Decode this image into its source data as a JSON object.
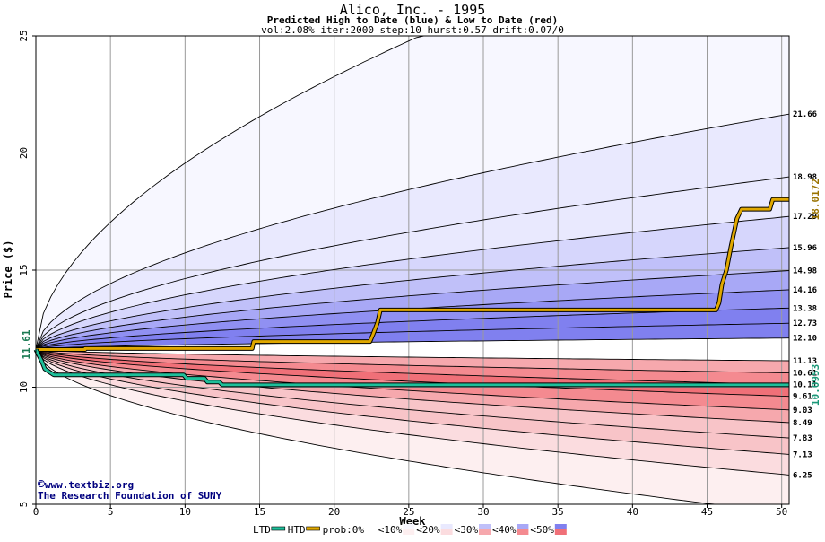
{
  "chart_data": {
    "type": "area",
    "title": "Alico, Inc. - 1995",
    "subtitle": "Predicted High to Date (blue) &  Low to Date (red)",
    "params": "vol:2.08% iter:2000 step:10 hurst:0.57 drift:0.07/0",
    "xlabel": "Week",
    "ylabel": "Price ($)",
    "xlim": [
      0,
      50.5
    ],
    "ylim": [
      5,
      25
    ],
    "xticks": [
      0,
      5,
      10,
      15,
      20,
      25,
      30,
      35,
      40,
      45,
      50
    ],
    "yticks": [
      5,
      10,
      15,
      20,
      25
    ],
    "grid": true,
    "start_price": 11.61,
    "start_label": "11.61",
    "band_colors": [
      "#ffffff",
      "#fdeff0",
      "#fbdcdf",
      "#f8c4c8",
      "#f6a8ad",
      "#f48a90",
      "#f07078",
      "#f7f7ff",
      "#e9e9fe",
      "#d6d6fc",
      "#c0c0f9",
      "#a8a8f6",
      "#9090f2",
      "#8080ef"
    ],
    "quantile_curves": [
      {
        "label": "21.66",
        "final": 21.66
      },
      {
        "label": "18.98",
        "final": 18.98
      },
      {
        "label": "17.29",
        "final": 17.29
      },
      {
        "label": "15.96",
        "final": 15.96
      },
      {
        "label": "14.98",
        "final": 14.98
      },
      {
        "label": "14.16",
        "final": 14.16
      },
      {
        "label": "13.38",
        "final": 13.38
      },
      {
        "label": "12.73",
        "final": 12.73
      },
      {
        "label": "12.10",
        "final": 12.1
      },
      {
        "label": "11.13",
        "final": 11.13
      },
      {
        "label": "10.61",
        "final": 10.61
      },
      {
        "label": "10.11",
        "final": 10.11
      },
      {
        "label": "9.61",
        "final": 9.61
      },
      {
        "label": "9.03",
        "final": 9.03
      },
      {
        "label": "8.49",
        "final": 8.49
      },
      {
        "label": "7.83",
        "final": 7.83
      },
      {
        "label": "7.13",
        "final": 7.13
      },
      {
        "label": "6.25",
        "final": 6.25
      }
    ],
    "outer_curves": {
      "upper_final": 31.0,
      "lower_final": 4.6
    },
    "series": [
      {
        "name": "HTD",
        "color": "#e0a800",
        "x": [
          0,
          0.3,
          3.3,
          3.3,
          14.5,
          14.6,
          22.4,
          22.6,
          22.9,
          23.1,
          33.0,
          45.6,
          45.8,
          46.0,
          46.3,
          46.6,
          47.0,
          47.3,
          49.2,
          49.4,
          50.5
        ],
        "y": [
          11.61,
          11.61,
          11.61,
          11.65,
          11.65,
          11.95,
          11.95,
          12.25,
          12.75,
          13.3,
          13.3,
          13.3,
          13.6,
          14.4,
          15.0,
          16.0,
          17.2,
          17.6,
          17.6,
          18.02,
          18.02
        ]
      },
      {
        "name": "LTD",
        "color": "#1ebf9a",
        "x": [
          0,
          0.4,
          0.6,
          1.2,
          9.9,
          10.1,
          11.3,
          11.5,
          12.3,
          12.5,
          50.5
        ],
        "y": [
          11.61,
          11.1,
          10.78,
          10.53,
          10.53,
          10.38,
          10.38,
          10.22,
          10.22,
          10.1,
          10.1
        ]
      }
    ],
    "end_labels": [
      {
        "text": "18.0172",
        "color": "#9a7300"
      },
      {
        "text": "10.0953",
        "color": "#1a9878"
      }
    ],
    "legend": [
      {
        "label": "LTD",
        "kind": "line",
        "color": "#1ebf9a"
      },
      {
        "label": "HTD",
        "kind": "line",
        "color": "#e0a800"
      },
      {
        "label": "prob:0%",
        "kind": "swatch",
        "top": "#ffffff",
        "bottom": "#ffffff"
      },
      {
        "label": "<10%",
        "kind": "swatch",
        "top": "#f7f7ff",
        "bottom": "#fdeff0"
      },
      {
        "label": "<20%",
        "kind": "swatch",
        "top": "#e9e9fe",
        "bottom": "#fbdcdf"
      },
      {
        "label": "<30%",
        "kind": "swatch",
        "top": "#c0c0f9",
        "bottom": "#f6a8ad"
      },
      {
        "label": "<40%",
        "kind": "swatch",
        "top": "#a8a8f6",
        "bottom": "#f48a90"
      },
      {
        "label": "<50%",
        "kind": "swatch",
        "top": "#8080ef",
        "bottom": "#f07078"
      }
    ],
    "legend_placement": "bottom"
  },
  "credits": {
    "site": "www.textbiz.org",
    "copyright_symbol": "©",
    "org": "The Research Foundation of SUNY"
  }
}
